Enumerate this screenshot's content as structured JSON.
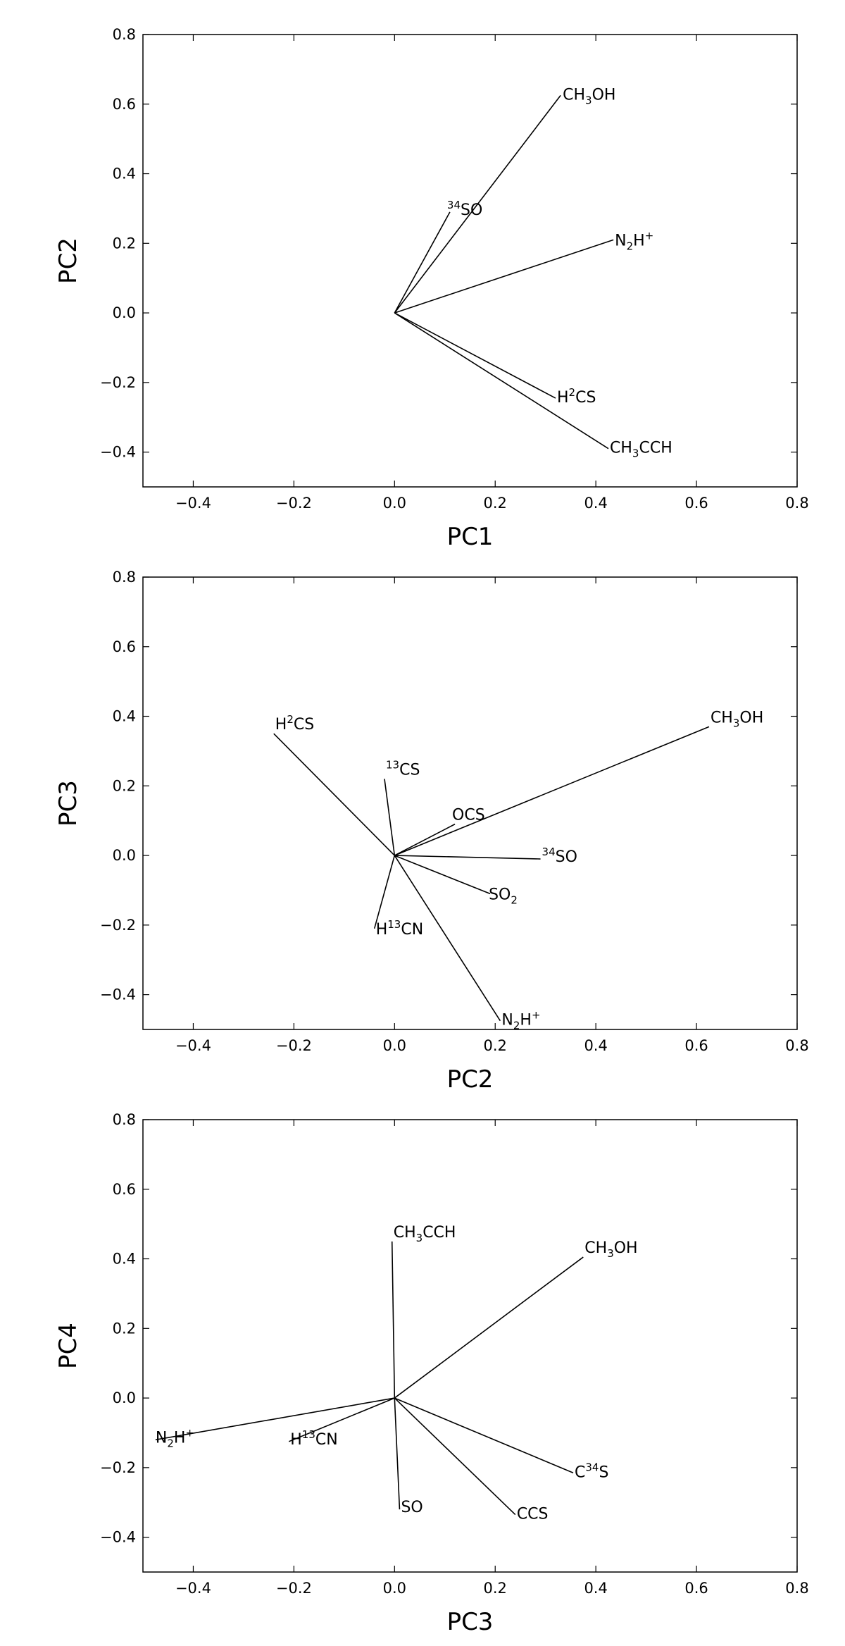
{
  "chart_data": [
    {
      "type": "line",
      "xlabel": "PC1",
      "ylabel": "PC2",
      "xlim": [
        -0.5,
        0.8
      ],
      "ylim": [
        -0.5,
        0.8
      ],
      "xticks": [
        "−0.4",
        "−0.2",
        "0.0",
        "0.2",
        "0.4",
        "0.6",
        "0.8"
      ],
      "yticks": [
        "−0.4",
        "−0.2",
        "0.0",
        "0.2",
        "0.4",
        "0.6",
        "0.8"
      ],
      "grid": false,
      "vectors": [
        {
          "label": "CH3OH",
          "x": 0.33,
          "y": 0.625
        },
        {
          "label": "34SO",
          "x": 0.11,
          "y": 0.29
        },
        {
          "label": "N2H+",
          "x": 0.435,
          "y": 0.21
        },
        {
          "label": "H2CS",
          "x": 0.32,
          "y": -0.245
        },
        {
          "label": "CH3CCH",
          "x": 0.425,
          "y": -0.39
        }
      ]
    },
    {
      "type": "line",
      "xlabel": "PC2",
      "ylabel": "PC3",
      "xlim": [
        -0.5,
        0.8
      ],
      "ylim": [
        -0.5,
        0.8
      ],
      "xticks": [
        "−0.4",
        "−0.2",
        "0.0",
        "0.2",
        "0.4",
        "0.6",
        "0.8"
      ],
      "yticks": [
        "−0.4",
        "−0.2",
        "0.0",
        "0.2",
        "0.4",
        "0.6",
        "0.8"
      ],
      "grid": false,
      "vectors": [
        {
          "label": "H2CS",
          "x": -0.24,
          "y": 0.35
        },
        {
          "label": "CH3OH",
          "x": 0.625,
          "y": 0.37
        },
        {
          "label": "13CS",
          "x": -0.02,
          "y": 0.22
        },
        {
          "label": "OCS",
          "x": 0.12,
          "y": 0.09
        },
        {
          "label": "34SO",
          "x": 0.29,
          "y": -0.01
        },
        {
          "label": "SO2",
          "x": 0.19,
          "y": -0.11
        },
        {
          "label": "H13CN",
          "x": -0.04,
          "y": -0.21
        },
        {
          "label": "N2H+",
          "x": 0.21,
          "y": -0.475
        }
      ]
    },
    {
      "type": "line",
      "xlabel": "PC3",
      "ylabel": "PC4",
      "xlim": [
        -0.5,
        0.8
      ],
      "ylim": [
        -0.5,
        0.8
      ],
      "xticks": [
        "−0.4",
        "−0.2",
        "0.0",
        "0.2",
        "0.4",
        "0.6",
        "0.8"
      ],
      "yticks": [
        "−0.4",
        "−0.2",
        "0.0",
        "0.2",
        "0.4",
        "0.6",
        "0.8"
      ],
      "grid": false,
      "vectors": [
        {
          "label": "CH3CCH",
          "x": -0.005,
          "y": 0.45
        },
        {
          "label": "CH3OH",
          "x": 0.375,
          "y": 0.405
        },
        {
          "label": "N2H+",
          "x": -0.475,
          "y": -0.12
        },
        {
          "label": "H13CN",
          "x": -0.21,
          "y": -0.125
        },
        {
          "label": "C34S",
          "x": 0.355,
          "y": -0.215
        },
        {
          "label": "SO",
          "x": 0.01,
          "y": -0.32
        },
        {
          "label": "CCS",
          "x": 0.24,
          "y": -0.335
        }
      ]
    }
  ]
}
